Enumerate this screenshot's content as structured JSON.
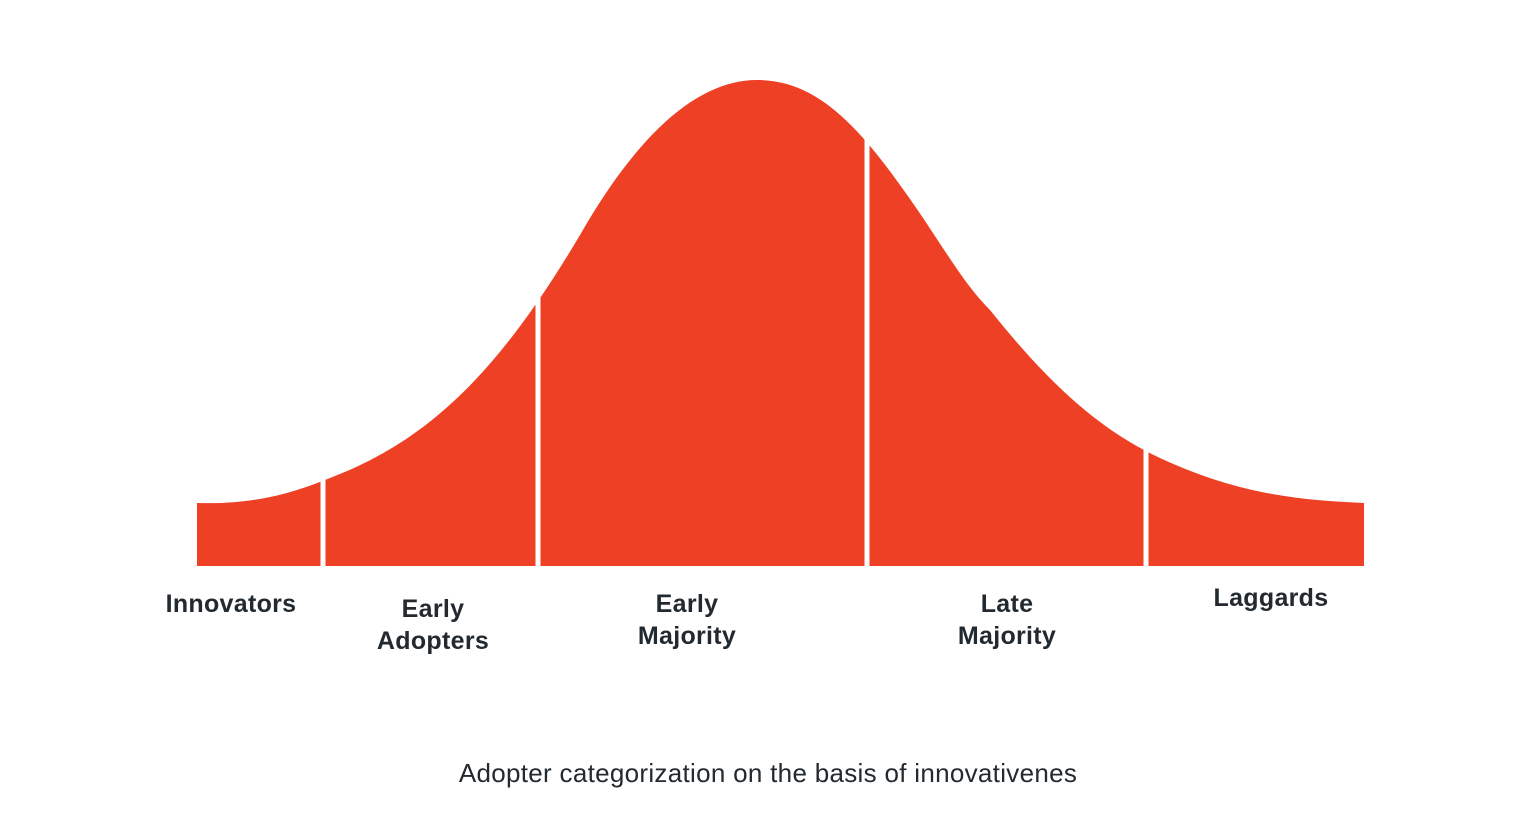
{
  "diagram": {
    "fill_color": "#ee4024",
    "divider_color": "#ffffff",
    "text_color": "#222a30",
    "segments": [
      {
        "id": "innovators",
        "lines": [
          "Innovators"
        ]
      },
      {
        "id": "early-adopters",
        "lines": [
          "Early",
          "Adopters"
        ]
      },
      {
        "id": "early-majority",
        "lines": [
          "Early",
          "Majority"
        ]
      },
      {
        "id": "late-majority",
        "lines": [
          "Late",
          "Majority"
        ]
      },
      {
        "id": "laggards",
        "lines": [
          "Laggards"
        ]
      }
    ],
    "caption": "Adopter categorization on the basis of innovativenes"
  }
}
